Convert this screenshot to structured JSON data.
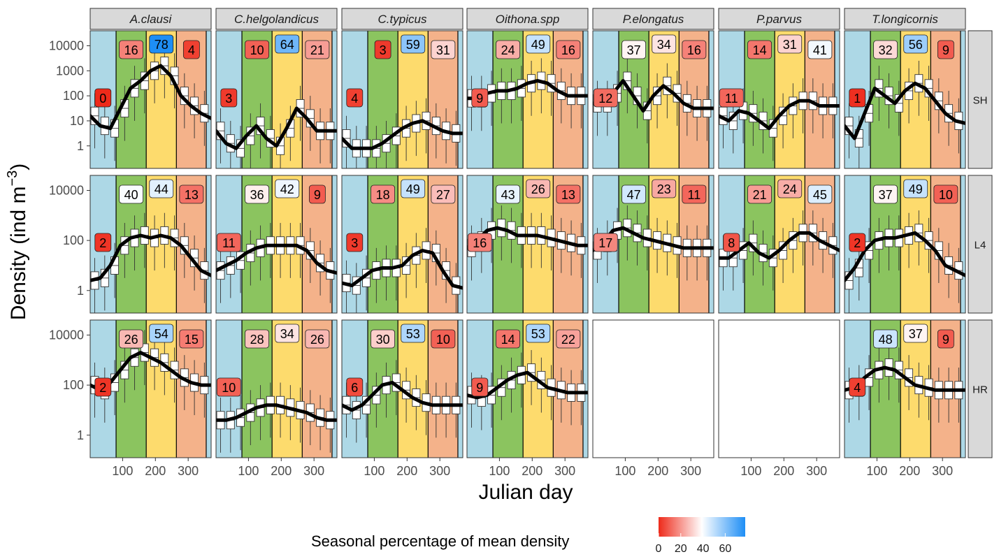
{
  "chart_data": {
    "type": "box",
    "xlabel": "Julian day",
    "ylabel": "Density (ind m",
    "ylabel_sup": "−3",
    "ylabel_close": ")",
    "x_ticks": [
      "100",
      "200",
      "300"
    ],
    "x_tick_values": [
      100,
      200,
      300
    ],
    "xlim": [
      1,
      370
    ],
    "y_scale": "log10",
    "ylim_log10": [
      -0.9,
      4.6
    ],
    "y_ticks": [
      "1",
      "10",
      "100",
      "1000",
      "10000"
    ],
    "y_tick_values": [
      0,
      1,
      2,
      3,
      4
    ],
    "y_ticks_L4": [
      "1",
      "100",
      "10000"
    ],
    "y_tick_values_L4": [
      0,
      2,
      4
    ],
    "y_ticks_HR": [
      "1",
      "100",
      "10000"
    ],
    "y_tick_values_HR": [
      0,
      2,
      4
    ],
    "season_bounds": [
      1,
      80,
      172,
      264,
      355,
      370
    ],
    "season_colors": [
      "#add8e6",
      "#8bc45f",
      "#fddb6d",
      "#f4b28a",
      "#add8e6"
    ],
    "species": [
      "A.clausi",
      "C.helgolandicus",
      "C.typicus",
      "Oithona.spp",
      "P.elongatus",
      "P.parvus",
      "T.longicornis"
    ],
    "sites": [
      "SH",
      "L4",
      "HR"
    ],
    "season_percentages": {
      "SH": [
        [
          0,
          16,
          78,
          4
        ],
        [
          3,
          10,
          64,
          21
        ],
        [
          4,
          3,
          59,
          31
        ],
        [
          9,
          24,
          49,
          16
        ],
        [
          12,
          37,
          34,
          16
        ],
        [
          11,
          14,
          31,
          41
        ],
        [
          1,
          32,
          56,
          9
        ]
      ],
      "L4": [
        [
          2,
          40,
          44,
          13
        ],
        [
          11,
          36,
          42,
          9
        ],
        [
          3,
          18,
          49,
          27
        ],
        [
          16,
          43,
          26,
          13
        ],
        [
          17,
          47,
          23,
          11
        ],
        [
          8,
          21,
          24,
          45
        ],
        [
          2,
          37,
          49,
          10
        ]
      ],
      "HR": [
        [
          2,
          26,
          54,
          15
        ],
        [
          10,
          28,
          34,
          26
        ],
        [
          6,
          30,
          53,
          10
        ],
        [
          9,
          14,
          53,
          22
        ],
        null,
        null,
        [
          4,
          48,
          37,
          9
        ]
      ]
    },
    "smooth_log10": {
      "SH": [
        [
          1.2,
          0.8,
          0.7,
          1.5,
          2.3,
          2.6,
          3.0,
          3.2,
          2.8,
          2.0,
          1.6,
          1.3,
          1.1
        ],
        [
          0.6,
          0.1,
          -0.1,
          0.4,
          0.8,
          0.3,
          0.0,
          0.7,
          1.5,
          1.1,
          0.6,
          0.6,
          0.6
        ],
        [
          0.3,
          -0.1,
          -0.1,
          -0.1,
          0.1,
          0.4,
          0.7,
          0.9,
          1.0,
          0.8,
          0.6,
          0.5,
          0.5
        ],
        [
          1.9,
          1.9,
          2.1,
          2.2,
          2.2,
          2.3,
          2.5,
          2.6,
          2.5,
          2.2,
          2.0,
          2.0,
          2.0
        ],
        [
          1.7,
          1.7,
          2.1,
          2.6,
          2.0,
          1.4,
          2.0,
          2.4,
          2.1,
          1.7,
          1.5,
          1.5,
          1.5
        ],
        [
          1.2,
          1.0,
          1.4,
          1.3,
          1.0,
          0.7,
          1.2,
          1.6,
          1.8,
          1.8,
          1.6,
          1.6,
          1.6
        ],
        [
          0.8,
          0.3,
          1.3,
          2.3,
          2.0,
          1.7,
          2.2,
          2.5,
          2.3,
          1.8,
          1.3,
          1.0,
          0.9
        ]
      ],
      "L4": [
        [
          0.4,
          0.5,
          1.0,
          1.8,
          2.1,
          2.2,
          2.1,
          2.2,
          2.1,
          1.8,
          1.3,
          0.8,
          0.6
        ],
        [
          0.8,
          1.0,
          1.2,
          1.5,
          1.7,
          1.8,
          1.8,
          1.8,
          1.8,
          1.6,
          1.1,
          0.8,
          0.7
        ],
        [
          0.3,
          0.2,
          0.5,
          0.8,
          0.9,
          0.9,
          1.0,
          1.4,
          1.6,
          1.5,
          0.8,
          0.2,
          0.1
        ],
        [
          1.7,
          2.0,
          2.4,
          2.5,
          2.4,
          2.2,
          2.2,
          2.2,
          2.1,
          2.0,
          1.9,
          1.8,
          1.8
        ],
        [
          1.6,
          1.9,
          2.4,
          2.5,
          2.3,
          2.1,
          2.0,
          1.9,
          1.8,
          1.7,
          1.7,
          1.7,
          1.7
        ],
        [
          1.3,
          1.3,
          1.6,
          1.9,
          1.5,
          1.3,
          1.6,
          2.0,
          2.3,
          2.3,
          2.0,
          1.8,
          1.6
        ],
        [
          0.4,
          0.9,
          1.6,
          2.0,
          2.1,
          2.1,
          2.2,
          2.3,
          2.0,
          1.6,
          1.0,
          0.8,
          0.6
        ]
      ],
      "HR": [
        [
          2.0,
          1.8,
          2.1,
          2.6,
          3.1,
          3.3,
          3.1,
          2.9,
          2.6,
          2.3,
          2.1,
          2.0,
          2.0
        ],
        [
          0.6,
          0.6,
          0.7,
          0.9,
          1.1,
          1.2,
          1.2,
          1.1,
          1.0,
          0.9,
          0.7,
          0.6,
          0.6
        ],
        [
          1.2,
          1.0,
          1.2,
          1.6,
          2.0,
          2.1,
          1.8,
          1.5,
          1.3,
          1.2,
          1.2,
          1.2,
          1.2
        ],
        [
          1.6,
          1.5,
          1.6,
          1.9,
          2.2,
          2.4,
          2.5,
          2.2,
          1.9,
          1.8,
          1.7,
          1.7,
          1.7
        ],
        null,
        null,
        [
          1.8,
          1.9,
          2.3,
          2.6,
          2.7,
          2.6,
          2.3,
          2.0,
          1.9,
          1.8,
          1.8,
          1.8,
          1.8
        ]
      ]
    },
    "legend": {
      "title": "Seasonal percentage of mean density",
      "ticks": [
        "0",
        "20",
        "40",
        "60"
      ],
      "tick_values": [
        0,
        20,
        40,
        60
      ],
      "range": [
        0,
        78
      ],
      "colors": [
        "#ee2a1a",
        "#ffffff",
        "#1e8ef5"
      ]
    }
  }
}
